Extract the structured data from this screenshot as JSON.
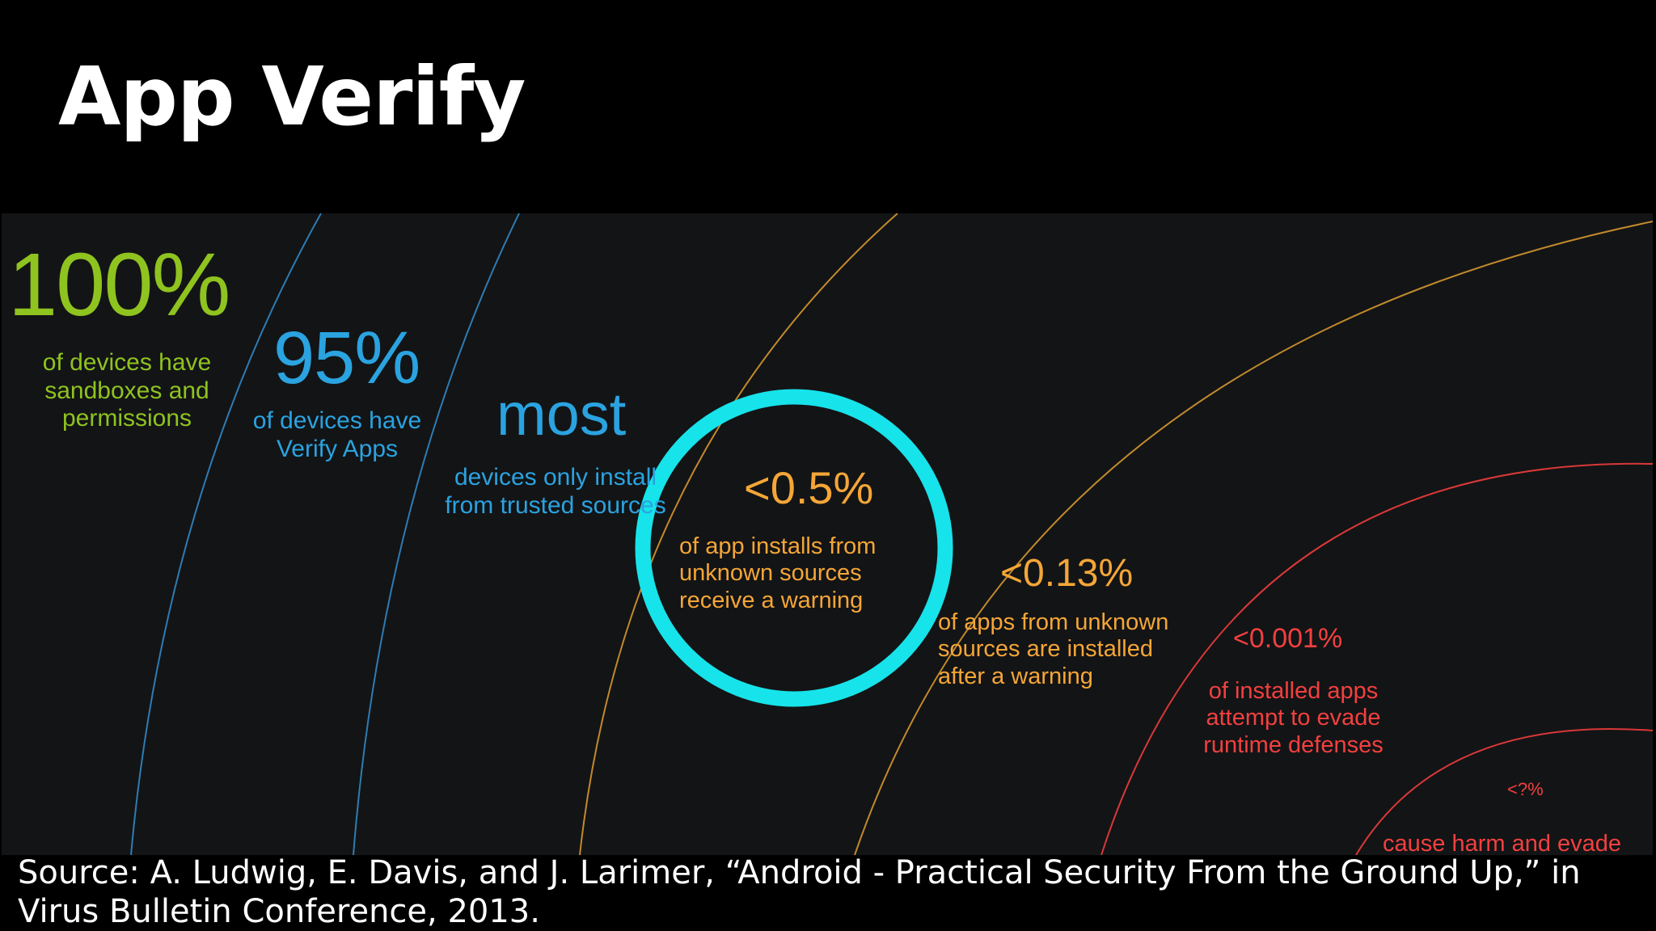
{
  "slide": {
    "title": "App Verify",
    "source": "Source: A. Ludwig, E. Davis, and J. Larimer, “Android - Practical Security From the Ground Up,” in Virus Bulletin Conference, 2013."
  },
  "diagram": {
    "layers": [
      {
        "value": "100%",
        "label": "of devices have sandboxes and permissions",
        "color": "#8fc31f"
      },
      {
        "value": "95%",
        "label": "of devices have Verify Apps",
        "color": "#2aa3e0"
      },
      {
        "value": "most",
        "label": "devices only install from trusted sources",
        "color": "#2aa3e0"
      },
      {
        "value": "<0.5%",
        "label": "of app installs from unknown sources receive a warning",
        "color": "#f4a637"
      },
      {
        "value": "<0.13%",
        "label": "of apps from unknown sources are installed after a warning",
        "color": "#f4a637"
      },
      {
        "value": "<0.001%",
        "label": "of installed apps attempt to evade runtime defenses",
        "color": "#f2403f"
      },
      {
        "value": "<?%",
        "label": "cause harm and evade",
        "color": "#f2403f"
      }
    ],
    "highlight_color": "#17e3ea"
  }
}
